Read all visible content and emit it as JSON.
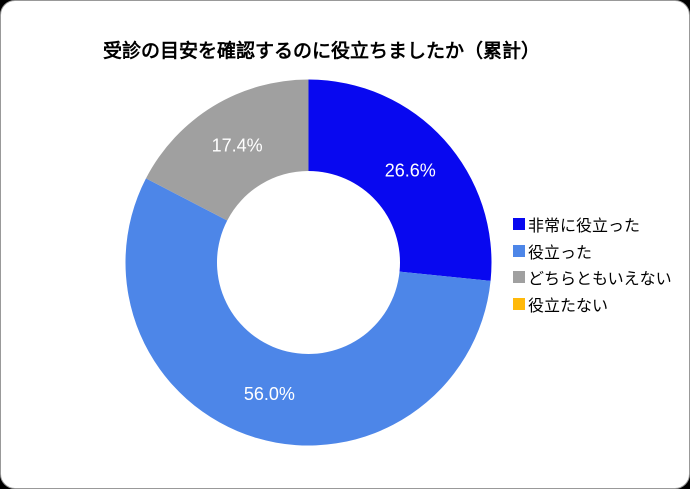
{
  "chart_data": {
    "type": "pie",
    "donut": true,
    "title": "受診の目安を確認するのに役立ちましたか（累計）",
    "categories": [
      "非常に役立った",
      "役立った",
      "どちらともいえない",
      "役立たない"
    ],
    "values": [
      26.6,
      56.0,
      17.4,
      0
    ],
    "labels": [
      "26.6%",
      "56.0%",
      "17.4%",
      ""
    ],
    "colors": [
      "#0808F0",
      "#4D86E8",
      "#A0A0A0",
      "#FFB90A"
    ],
    "label_color": "#ffffff",
    "legend_position": "right",
    "start_angle_deg": 0,
    "inner_radius_ratio": 0.5
  }
}
